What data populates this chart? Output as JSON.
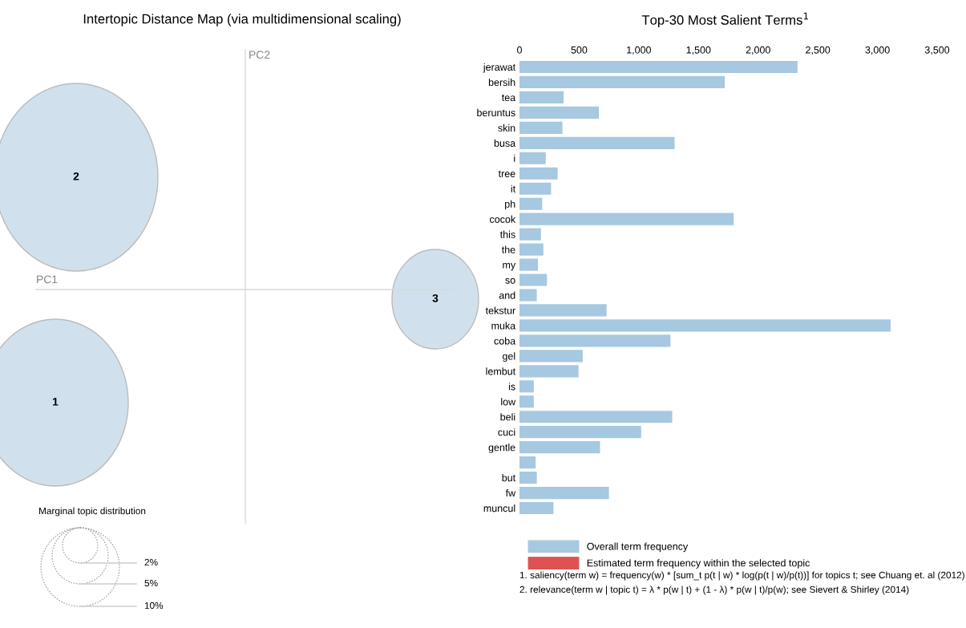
{
  "chart_data": [
    {
      "type": "other",
      "title": "Intertopic Distance Map (via multidimensional scaling)",
      "xlabel": "PC1",
      "ylabel": "PC2",
      "annotations": [
        "2",
        "1",
        "3",
        "Marginal topic distribution",
        "2%",
        "5%",
        "10%"
      ]
    },
    {
      "type": "bar",
      "orientation": "horizontal",
      "title": "Top-30 Most Salient Terms$^{1}$",
      "categories": [
        "jerawat",
        "bersih",
        "tea",
        "beruntus",
        "skin",
        "busa",
        "i",
        "tree",
        "it",
        "ph",
        "cocok",
        "this",
        "the",
        "my",
        "so",
        "and",
        "tekstur",
        "muka",
        "coba",
        "gel",
        "lembut",
        "is",
        "low",
        "beli",
        "cuci",
        "gentle",
        null,
        "but",
        "fw",
        "muncul"
      ],
      "series": [
        {
          "name": "Overall term frequency",
          "color": "#a6c8e1",
          "values": [
            2330,
            1720,
            370,
            665,
            360,
            1300,
            220,
            320,
            265,
            190,
            1795,
            180,
            200,
            155,
            230,
            145,
            730,
            3110,
            1265,
            530,
            495,
            120,
            120,
            1280,
            1020,
            675,
            135,
            145,
            750,
            285
          ]
        },
        {
          "name": "Estimated term frequency within the selected topic",
          "color": "#dd5353",
          "values": [
            null,
            null,
            null,
            null,
            null,
            null,
            null,
            null,
            null,
            null,
            null,
            null,
            null,
            null,
            null,
            null,
            null,
            null,
            null,
            null,
            null,
            null,
            null,
            null,
            null,
            null,
            null,
            null,
            null,
            null
          ]
        }
      ],
      "xlim": [
        0,
        3500
      ],
      "xticks": [
        0,
        500,
        {
          "value": 1000,
          "label": "1,000"
        },
        {
          "value": 1500,
          "label": "1,500"
        },
        {
          "value": 2000,
          "label": "2,000"
        },
        {
          "value": 2500,
          "label": "2,500"
        },
        {
          "value": 3000,
          "label": "3,000"
        },
        {
          "value": 3500,
          "label": "3,500"
        }
      ],
      "legend": "bottom",
      "annotations": [
        "1. saliency(term w) = frequency(w) * [sum_t p(t | w) * log(p(t | w)/p(t))] for topics t; see Chuang et. al (2012)",
        "2. relevance(term w | topic t) = λ * p(w | t) + (1 - λ) * p(w | t)/p(w); see Sievert & Shirley (2014)"
      ]
    }
  ]
}
